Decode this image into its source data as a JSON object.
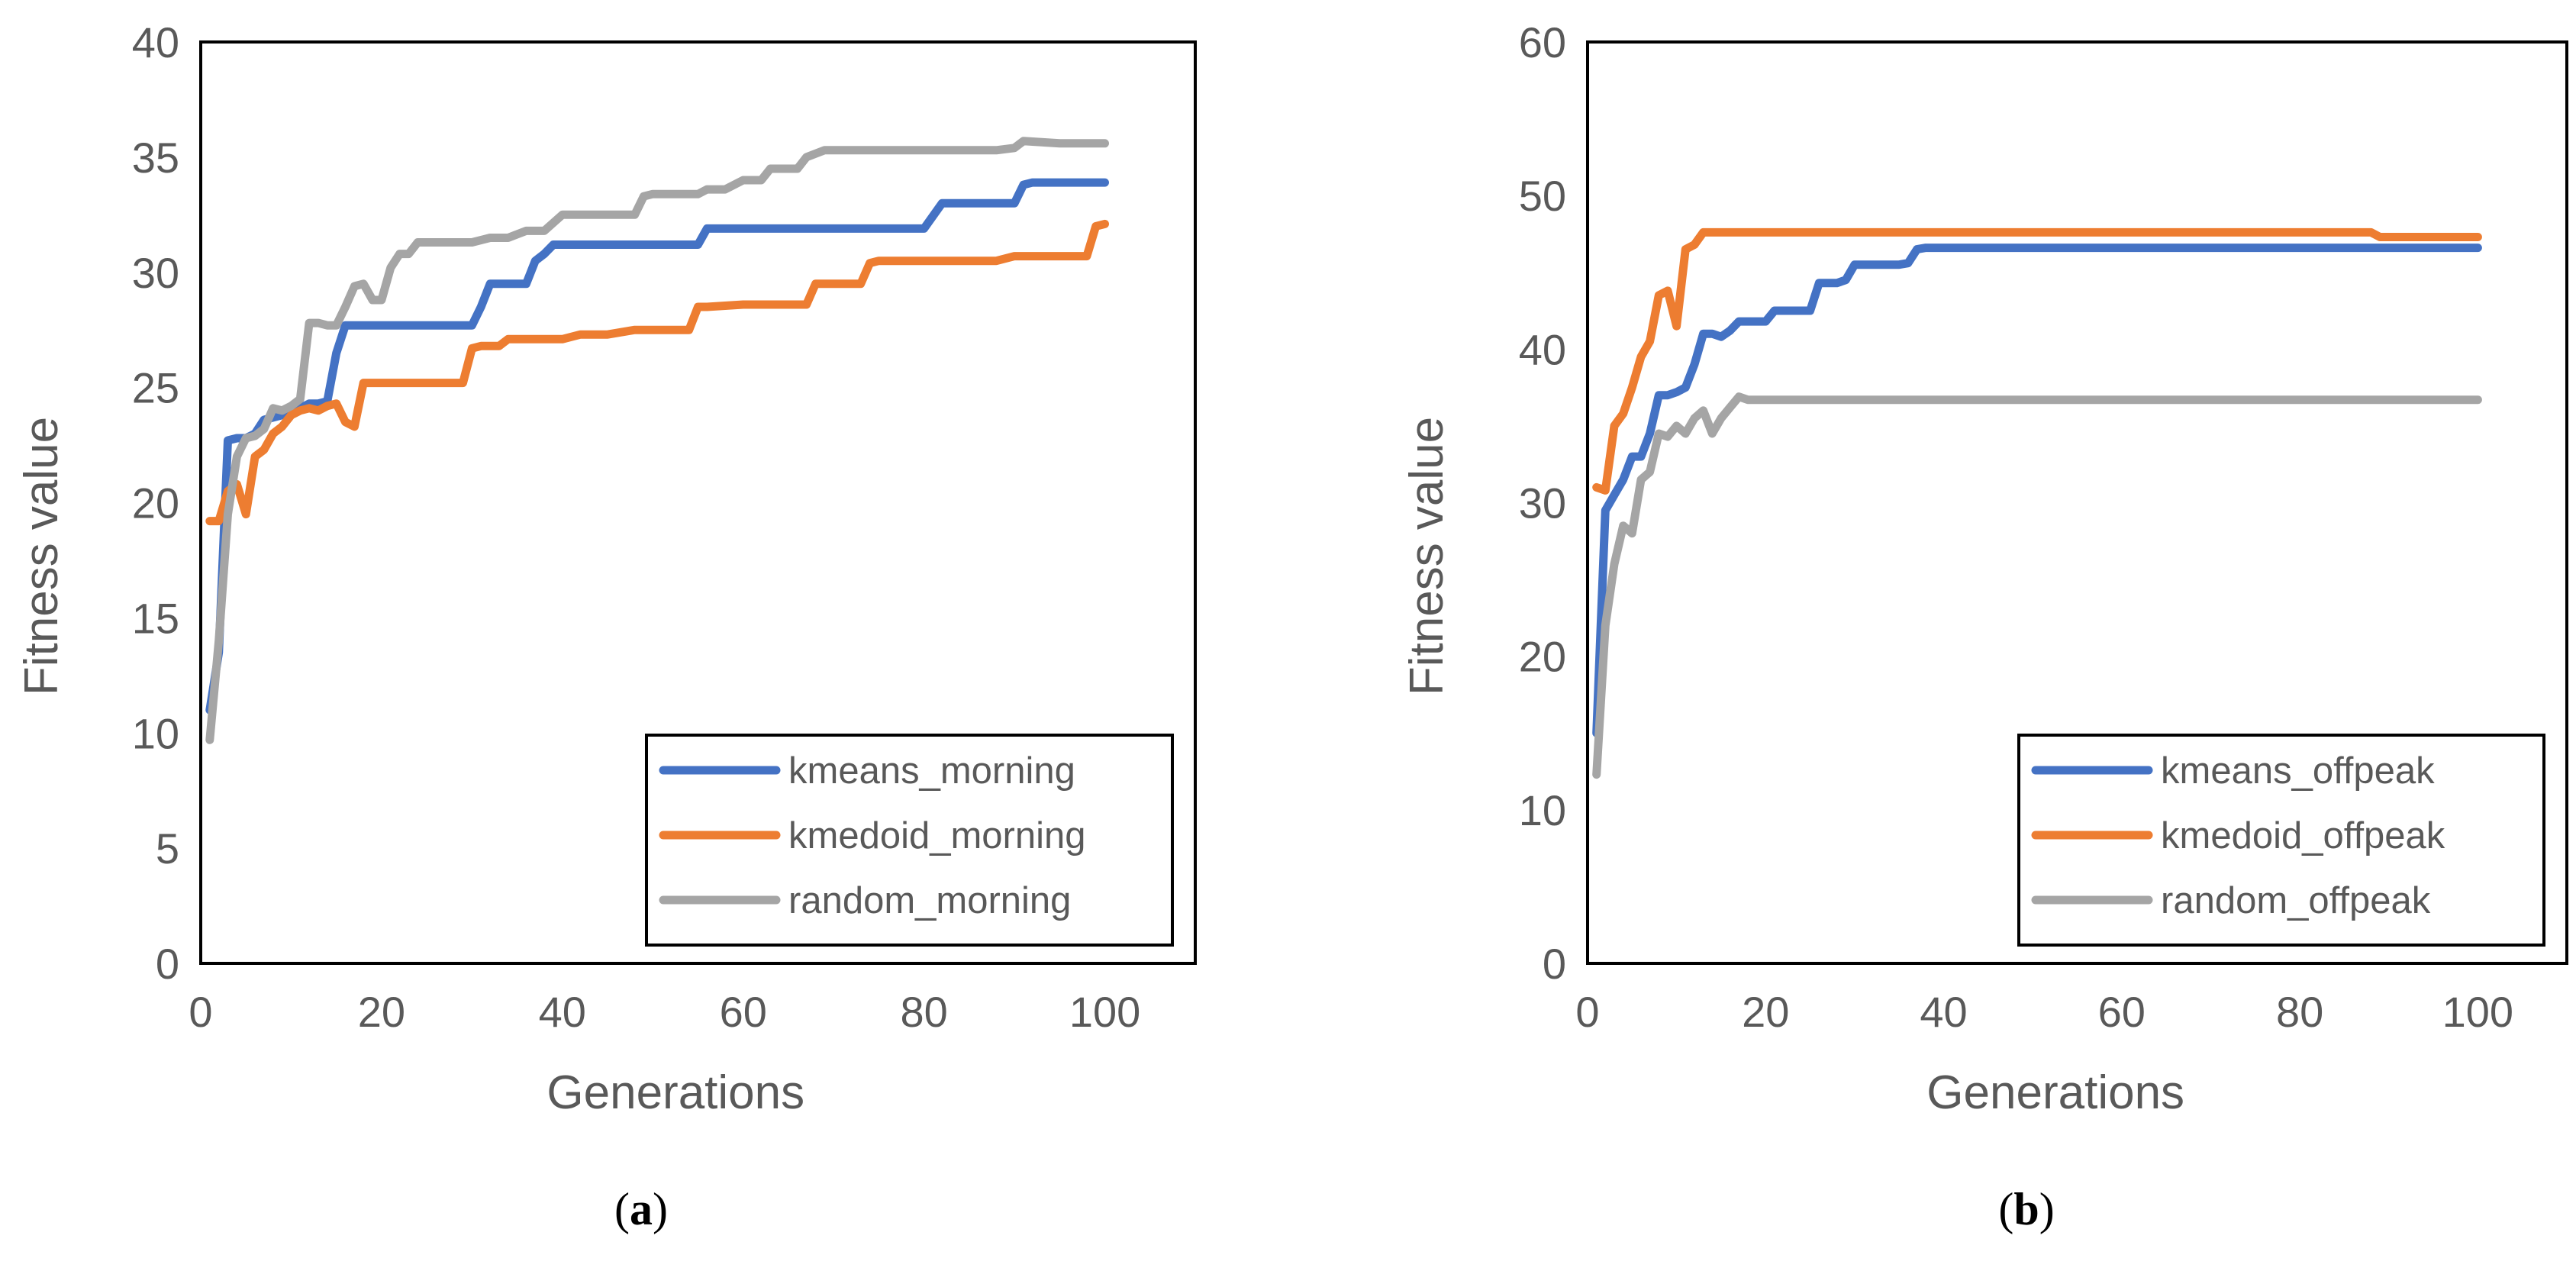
{
  "chart_data": [
    {
      "type": "line",
      "caption_letter": "a",
      "xlabel": "Generations",
      "ylabel": "Fitness value",
      "xlim": [
        0,
        110
      ],
      "ylim": [
        0,
        40
      ],
      "xticks": [
        "0",
        "20",
        "40",
        "60",
        "80",
        "100"
      ],
      "yticks": [
        "0",
        "5",
        "10",
        "15",
        "20",
        "25",
        "30",
        "35",
        "40"
      ],
      "legend_position": "bottom-right",
      "series": [
        {
          "name": "kmeans_morning",
          "color": "#4472C4",
          "x": [
            1,
            2,
            3,
            4,
            5,
            6,
            7,
            8,
            9,
            10,
            11,
            12,
            13,
            14,
            15,
            16,
            18,
            20,
            25,
            30,
            31,
            32,
            33,
            35,
            36,
            37,
            38,
            39,
            40,
            45,
            50,
            55,
            56,
            57,
            60,
            70,
            80,
            82,
            83,
            85,
            90,
            91,
            92,
            95,
            100
          ],
          "values": [
            11.0,
            13.5,
            22.7,
            22.8,
            22.8,
            23.0,
            23.6,
            23.7,
            23.8,
            24.0,
            24.1,
            24.3,
            24.3,
            24.4,
            26.5,
            27.7,
            27.7,
            27.7,
            27.7,
            27.7,
            28.5,
            29.5,
            29.5,
            29.5,
            29.5,
            30.5,
            30.8,
            31.2,
            31.2,
            31.2,
            31.2,
            31.2,
            31.9,
            31.9,
            31.9,
            31.9,
            31.9,
            33.0,
            33.0,
            33.0,
            33.0,
            33.8,
            33.9,
            33.9,
            33.9
          ]
        },
        {
          "name": "kmedoid_morning",
          "color": "#ED7D31",
          "x": [
            1,
            2,
            3,
            4,
            5,
            6,
            7,
            8,
            9,
            10,
            11,
            12,
            13,
            14,
            15,
            16,
            17,
            18,
            20,
            25,
            29,
            30,
            31,
            33,
            34,
            35,
            40,
            42,
            45,
            48,
            50,
            54,
            55,
            56,
            60,
            65,
            67,
            68,
            69,
            72,
            73,
            74,
            75,
            80,
            85,
            88,
            90,
            95,
            98,
            99,
            100
          ],
          "values": [
            19.2,
            19.2,
            20.5,
            20.8,
            19.5,
            22.0,
            22.3,
            23.0,
            23.3,
            23.8,
            24.0,
            24.1,
            24.0,
            24.2,
            24.3,
            23.5,
            23.3,
            25.2,
            25.2,
            25.2,
            25.2,
            26.7,
            26.8,
            26.8,
            27.1,
            27.1,
            27.1,
            27.3,
            27.3,
            27.5,
            27.5,
            27.5,
            28.5,
            28.5,
            28.6,
            28.6,
            28.6,
            29.5,
            29.5,
            29.5,
            29.5,
            30.4,
            30.5,
            30.5,
            30.5,
            30.5,
            30.7,
            30.7,
            30.7,
            32.0,
            32.1
          ]
        },
        {
          "name": "random_morning",
          "color": "#A5A5A5",
          "x": [
            1,
            2,
            3,
            4,
            5,
            6,
            7,
            8,
            9,
            10,
            11,
            12,
            13,
            14,
            15,
            16,
            17,
            18,
            19,
            20,
            21,
            22,
            23,
            24,
            25,
            30,
            32,
            34,
            36,
            38,
            40,
            45,
            48,
            49,
            50,
            55,
            56,
            58,
            60,
            62,
            63,
            66,
            67,
            69,
            70,
            75,
            80,
            85,
            88,
            90,
            91,
            95,
            100
          ],
          "values": [
            9.7,
            14.0,
            19.5,
            22.0,
            22.8,
            22.9,
            23.2,
            24.1,
            24.0,
            24.2,
            24.5,
            27.8,
            27.8,
            27.7,
            27.7,
            28.5,
            29.4,
            29.5,
            28.8,
            28.8,
            30.2,
            30.8,
            30.8,
            31.3,
            31.3,
            31.3,
            31.5,
            31.5,
            31.8,
            31.8,
            32.5,
            32.5,
            32.5,
            33.3,
            33.4,
            33.4,
            33.6,
            33.6,
            34.0,
            34.0,
            34.5,
            34.5,
            35.0,
            35.3,
            35.3,
            35.3,
            35.3,
            35.3,
            35.3,
            35.4,
            35.7,
            35.6,
            35.6
          ]
        }
      ]
    },
    {
      "type": "line",
      "caption_letter": "b",
      "xlabel": "Generations",
      "ylabel": "Fitness value",
      "xlim": [
        0,
        110
      ],
      "ylim": [
        0,
        60
      ],
      "xticks": [
        "0",
        "20",
        "40",
        "60",
        "80",
        "100"
      ],
      "yticks": [
        "0",
        "10",
        "20",
        "30",
        "40",
        "50",
        "60"
      ],
      "legend_position": "bottom-right",
      "series": [
        {
          "name": "kmeans_offpeak",
          "color": "#4472C4",
          "x": [
            1,
            2,
            3,
            4,
            5,
            6,
            7,
            8,
            9,
            10,
            11,
            12,
            13,
            14,
            15,
            16,
            17,
            18,
            19,
            20,
            21,
            22,
            23,
            24,
            25,
            26,
            27,
            28,
            29,
            30,
            31,
            32,
            33,
            35,
            36,
            37,
            38,
            40,
            50,
            60,
            80,
            100
          ],
          "values": [
            15.0,
            29.5,
            30.5,
            31.5,
            33.0,
            33.0,
            34.5,
            37.0,
            37.0,
            37.2,
            37.5,
            39.0,
            41.0,
            41.0,
            40.8,
            41.2,
            41.8,
            41.8,
            41.8,
            41.8,
            42.5,
            42.5,
            42.5,
            42.5,
            42.5,
            44.3,
            44.3,
            44.3,
            44.5,
            45.5,
            45.5,
            45.5,
            45.5,
            45.5,
            45.6,
            46.5,
            46.6,
            46.6,
            46.6,
            46.6,
            46.6,
            46.6
          ]
        },
        {
          "name": "kmedoid_offpeak",
          "color": "#ED7D31",
          "x": [
            1,
            2,
            3,
            4,
            5,
            6,
            7,
            8,
            9,
            10,
            11,
            12,
            13,
            14,
            20,
            40,
            60,
            80,
            88,
            89,
            100
          ],
          "values": [
            31.0,
            30.8,
            35.0,
            35.8,
            37.5,
            39.5,
            40.5,
            43.5,
            43.8,
            41.5,
            46.5,
            46.8,
            47.6,
            47.6,
            47.6,
            47.6,
            47.6,
            47.6,
            47.6,
            47.3,
            47.3
          ]
        },
        {
          "name": "random_offpeak",
          "color": "#A5A5A5",
          "x": [
            1,
            2,
            3,
            4,
            5,
            6,
            7,
            8,
            9,
            10,
            11,
            12,
            13,
            14,
            15,
            16,
            17,
            18,
            20,
            40,
            60,
            80,
            100
          ],
          "values": [
            12.3,
            22.0,
            26.0,
            28.5,
            28.0,
            31.5,
            32.0,
            34.5,
            34.3,
            35.0,
            34.5,
            35.5,
            36.0,
            34.5,
            35.5,
            36.2,
            36.9,
            36.7,
            36.7,
            36.7,
            36.7,
            36.7,
            36.7
          ]
        }
      ]
    }
  ]
}
